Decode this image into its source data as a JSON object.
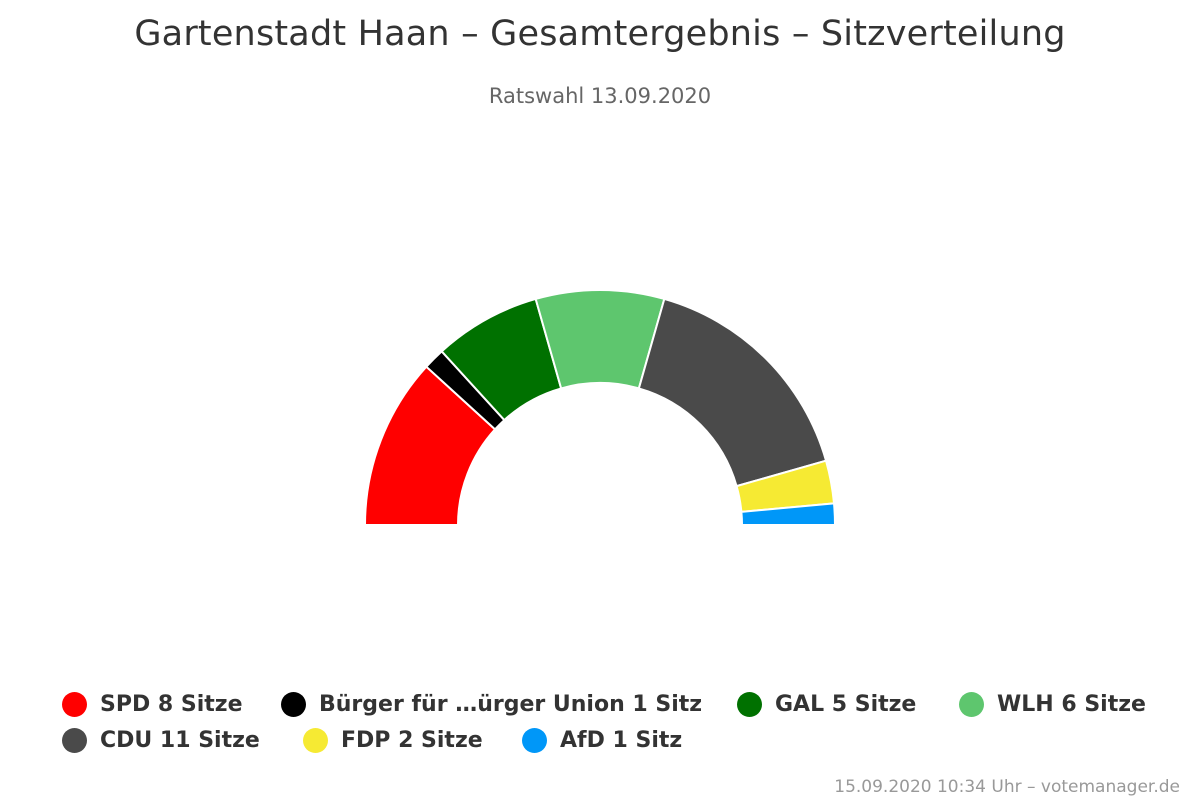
{
  "title": "Gartenstadt Haan – Gesamtergebnis – Sitzverteilung",
  "subtitle": "Ratswahl 13.09.2020",
  "credits": "15.09.2020 10:34 Uhr – votemanager.de",
  "chart_data": {
    "type": "pie",
    "variant": "semicircle-donut",
    "title": "Gartenstadt Haan – Gesamtergebnis – Sitzverteilung",
    "subtitle": "Ratswahl 13.09.2020",
    "total_seats": 34,
    "legend_position": "bottom",
    "series": [
      {
        "name": "SPD",
        "value": 8,
        "color": "#ff0000",
        "legend_label": "SPD 8 Sitze"
      },
      {
        "name": "Bürger für …ürger Union",
        "value": 1,
        "color": "#000000",
        "legend_label": "Bürger für …ürger Union 1 Sitz"
      },
      {
        "name": "GAL",
        "value": 5,
        "color": "#007100",
        "legend_label": "GAL 5 Sitze"
      },
      {
        "name": "WLH",
        "value": 6,
        "color": "#5ec66e",
        "legend_label": "WLH 6 Sitze"
      },
      {
        "name": "CDU",
        "value": 11,
        "color": "#4a4a4a",
        "legend_label": "CDU 11 Sitze"
      },
      {
        "name": "FDP",
        "value": 2,
        "color": "#f6ea33",
        "legend_label": "FDP 2 Sitze"
      },
      {
        "name": "AfD",
        "value": 1,
        "color": "#0097f8",
        "legend_label": "AfD 1 Sitz"
      }
    ]
  }
}
